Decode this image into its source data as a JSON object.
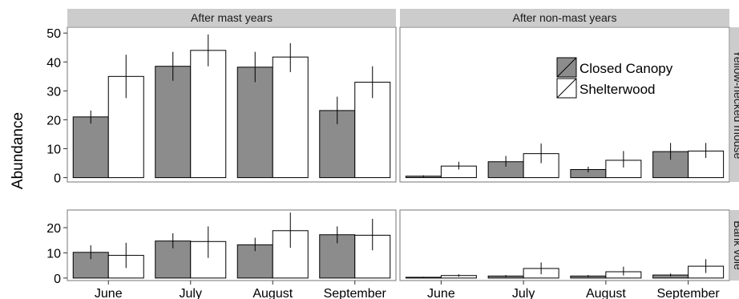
{
  "chart_data": {
    "type": "bar",
    "ylabel": "Abundance",
    "categories": [
      "June",
      "July",
      "August",
      "September"
    ],
    "columns": [
      "After mast years",
      "After non-mast years"
    ],
    "rows": [
      "Yellow-necked mouse",
      "Bank vole"
    ],
    "legend": {
      "position": "inside-top-right",
      "entries": [
        "Closed Canopy",
        "Shelterwood"
      ]
    },
    "colors": {
      "Closed Canopy": "#8c8c8c",
      "Shelterwood": "#ffffff",
      "strip": "#cccccc"
    },
    "grid": false,
    "panels": [
      {
        "row": "Yellow-necked mouse",
        "column": "After mast years",
        "ylim": [
          -1.5,
          52
        ],
        "yticks": [
          0,
          10,
          20,
          30,
          40,
          50
        ],
        "series": [
          {
            "name": "Closed Canopy",
            "values": [
              21,
              38.5,
              38.2,
              23.2
            ],
            "lower": [
              18.7,
              33.5,
              33,
              18.5
            ],
            "upper": [
              23.2,
              43.5,
              43.5,
              28
            ]
          },
          {
            "name": "Shelterwood",
            "values": [
              35,
              44,
              41.7,
              33
            ],
            "lower": [
              27.5,
              38.5,
              36.5,
              27.5
            ],
            "upper": [
              42.5,
              49.5,
              46.5,
              38.5
            ]
          }
        ]
      },
      {
        "row": "Yellow-necked mouse",
        "column": "After non-mast years",
        "ylim": [
          -1.5,
          52
        ],
        "yticks": [
          0,
          10,
          20,
          30,
          40,
          50
        ],
        "series": [
          {
            "name": "Closed Canopy",
            "values": [
              0.5,
              5.5,
              2.8,
              9
            ],
            "lower": [
              0.2,
              3.8,
              1.8,
              6.2
            ],
            "upper": [
              0.8,
              7.5,
              3.8,
              12
            ]
          },
          {
            "name": "Shelterwood",
            "values": [
              4,
              8.3,
              6,
              9.2
            ],
            "lower": [
              2.8,
              5,
              3.5,
              6.8
            ],
            "upper": [
              5.5,
              11.8,
              9.2,
              12
            ]
          }
        ]
      },
      {
        "row": "Bank vole",
        "column": "After mast years",
        "ylim": [
          -1,
          27
        ],
        "yticks": [
          0,
          10,
          20
        ],
        "series": [
          {
            "name": "Closed Canopy",
            "values": [
              10.2,
              14.7,
              13.2,
              17.2
            ],
            "lower": [
              7.5,
              11.8,
              10.7,
              13.8
            ],
            "upper": [
              13,
              17.8,
              16,
              20.5
            ]
          },
          {
            "name": "Shelterwood",
            "values": [
              9,
              14.5,
              18.8,
              17
            ],
            "lower": [
              4,
              8,
              12,
              11
            ],
            "upper": [
              14,
              20.5,
              26,
              23.5
            ]
          }
        ]
      },
      {
        "row": "Bank vole",
        "column": "After non-mast years",
        "ylim": [
          -1,
          27
        ],
        "yticks": [
          0,
          10,
          20
        ],
        "series": [
          {
            "name": "Closed Canopy",
            "values": [
              0.3,
              0.8,
              0.8,
              1.2
            ],
            "lower": [
              0.1,
              0.4,
              0.4,
              0.6
            ],
            "upper": [
              0.5,
              1.2,
              1.2,
              1.8
            ]
          },
          {
            "name": "Shelterwood",
            "values": [
              1,
              3.8,
              2.5,
              4.7
            ],
            "lower": [
              0.5,
              1.5,
              1,
              2
            ],
            "upper": [
              1.5,
              6.2,
              4.5,
              7.5
            ]
          }
        ]
      }
    ]
  }
}
